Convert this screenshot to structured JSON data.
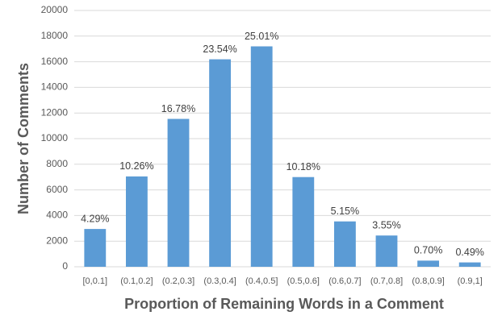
{
  "chart_data": {
    "type": "bar",
    "x_label": "Proportion of Remaining Words in a Comment",
    "y_label": "Number of Comments",
    "categories": [
      "[0,0.1]",
      "(0.1,0.2]",
      "(0.2,0.3]",
      "(0.3,0.4]",
      "(0.4,0.5]",
      "(0.5,0.6]",
      "(0.6,0.7]",
      "(0.7,0.8]",
      "(0.8,0.9]",
      "(0.9,1]"
    ],
    "values": [
      2950,
      7050,
      11540,
      16190,
      17200,
      7000,
      3540,
      2440,
      480,
      340
    ],
    "annotations": [
      "4.29%",
      "10.26%",
      "16.78%",
      "23.54%",
      "25.01%",
      "10.18%",
      "5.15%",
      "3.55%",
      "0.70%",
      "0.49%"
    ],
    "color": "#5b9bd5",
    "ylim": [
      0,
      20000
    ],
    "yticks": [
      0,
      2000,
      4000,
      6000,
      8000,
      10000,
      12000,
      14000,
      16000,
      18000,
      20000
    ],
    "grid": true
  }
}
